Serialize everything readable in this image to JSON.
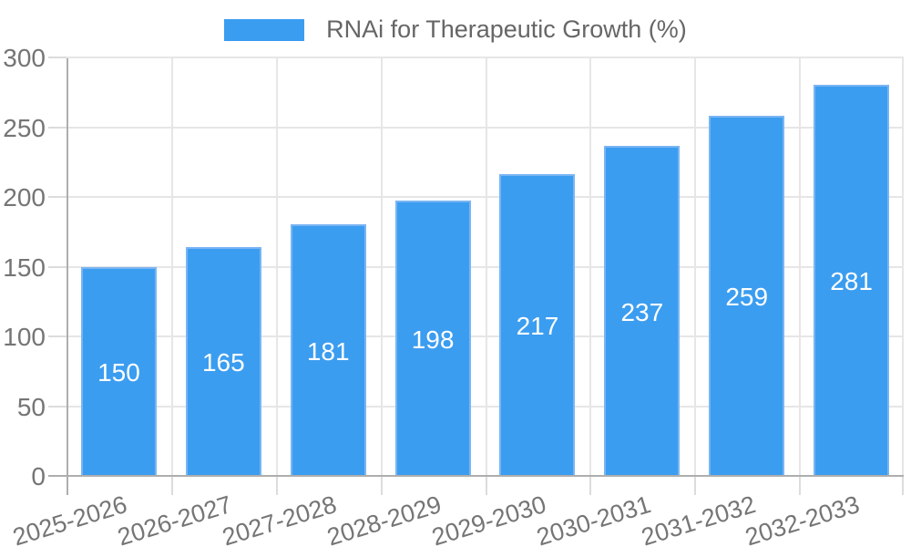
{
  "legend": {
    "label": "RNAi for Therapeutic Growth (%)"
  },
  "colors": {
    "bar": "#3b9df0",
    "bar_border": "#7ab5f3",
    "bar_label_text": "#ffffff",
    "grid": "#e6e6e6",
    "zero_line": "#aeaeae",
    "tick_text": "#757575",
    "legend_text": "#666666"
  },
  "chart_data": {
    "type": "bar",
    "title": "RNAi for Therapeutic Growth (%)",
    "categories": [
      "2025-2026",
      "2026-2027",
      "2027-2028",
      "2028-2029",
      "2029-2030",
      "2030-2031",
      "2031-2032",
      "2032-2033"
    ],
    "values": [
      150,
      165,
      181,
      198,
      217,
      237,
      259,
      281
    ],
    "xlabel": "",
    "ylabel": "",
    "ylim": [
      0,
      300
    ],
    "y_ticks": [
      0,
      50,
      100,
      150,
      200,
      250,
      300
    ],
    "grid": true,
    "legend_position": "top",
    "value_labels": "inside-center",
    "x_label_rotation_deg": -17
  }
}
